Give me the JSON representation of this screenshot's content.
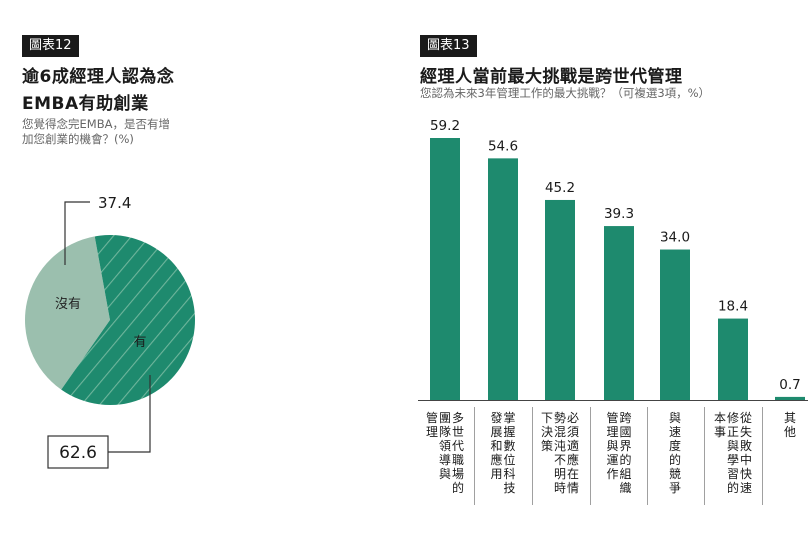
{
  "left": {
    "tag": "圖表12",
    "title_line1": "逾6成經理人認為念",
    "title_line2": "EMBA有助創業",
    "subtitle_line1": "您覺得念完EMBA，是否有增",
    "subtitle_line2": "加您創業的機會？(%)"
  },
  "right": {
    "tag": "圖表13",
    "title": "經理人當前最大挑戰是跨世代管理",
    "subtitle": "您認為未來3年管理工作的最大挑戰？（可複選3項，%）"
  },
  "chart_data": [
    {
      "type": "pie",
      "categories": [
        "有",
        "沒有"
      ],
      "values": [
        62.6,
        37.4
      ],
      "value_labels": [
        "62.6",
        "37.4"
      ],
      "colors": [
        "#1e8a6e",
        "#9bbfae"
      ]
    },
    {
      "type": "bar",
      "categories": [
        "多世代職場的團隊領導與管理",
        "掌握數位科技發展和應用",
        "必須適應在情勢混沌不明時下決策",
        "跨國界的組織管理與運作",
        "與速度的競爭",
        "從失敗中快速修正與學習的本事",
        "其他"
      ],
      "values": [
        59.2,
        54.6,
        45.2,
        39.3,
        34.0,
        18.4,
        0.7
      ],
      "value_labels": [
        "59.2",
        "54.6",
        "45.2",
        "39.3",
        "34.0",
        "18.4",
        "0.7"
      ],
      "category_columns": [
        [
          "多世代職場的",
          "團隊領導與",
          "管理"
        ],
        [
          "掌握數位科技",
          "發展和應用"
        ],
        [
          "必須適應在情",
          "勢混沌不明時",
          "下決策"
        ],
        [
          "跨國界的組織",
          "管理與運作"
        ],
        [
          "與速度的競爭"
        ],
        [
          "從失敗中快速",
          "修正與學習的",
          "本事"
        ],
        [
          "其他"
        ]
      ],
      "color": "#1e8a6e"
    }
  ]
}
